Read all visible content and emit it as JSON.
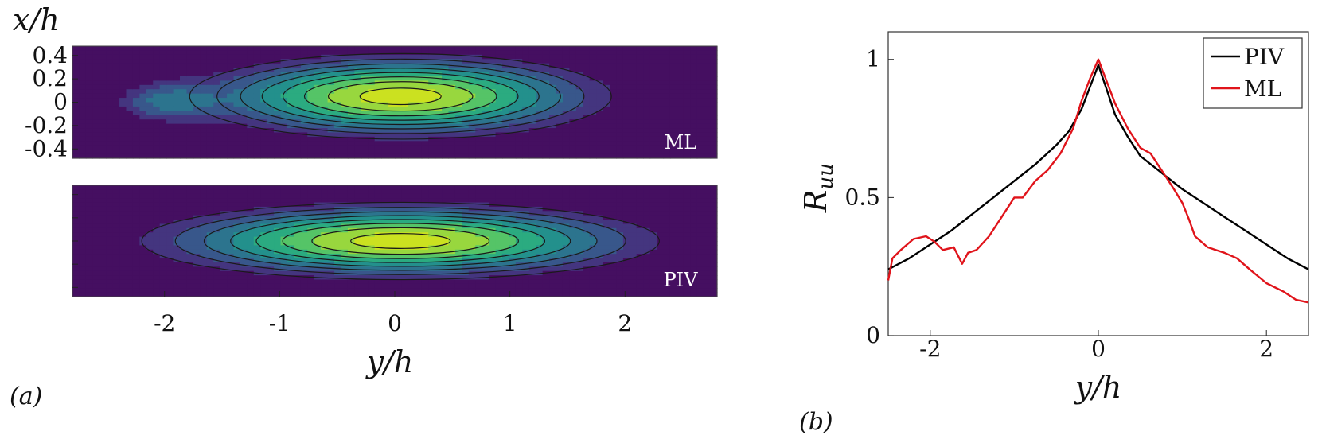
{
  "panel_a_label": "(a)",
  "panel_b_label": "(b)",
  "colors": {
    "piv": "#000000",
    "ml": "#e0141b",
    "contour_line": "#1a1a1a",
    "viridis_low": "#440154",
    "viridis_high": "#d8e219"
  },
  "chart_data": [
    {
      "type": "heatmap",
      "name": "ML contour map",
      "panel": "a",
      "inset_label": "ML",
      "ylabel": "x/h",
      "xlabel": "",
      "xlim": [
        -2.8,
        2.8
      ],
      "ylim": [
        -0.48,
        0.48
      ],
      "yticks": [
        0.4,
        0.2,
        0,
        -0.2,
        -0.4
      ],
      "ytick_labels": [
        "0.4",
        "0.2",
        "0",
        "-0.2",
        "-0.4"
      ],
      "field": {
        "peak": {
          "y": 0.05,
          "x": 0.05,
          "value": 1.0
        },
        "secondary": [
          {
            "y": -2.0,
            "x": 0.0,
            "value": 0.35
          }
        ],
        "sigma_y": 1.1,
        "sigma_x": 0.22,
        "levels": [
          0.25,
          0.35,
          0.45,
          0.55,
          0.65,
          0.75,
          0.85,
          0.95
        ]
      }
    },
    {
      "type": "heatmap",
      "name": "PIV contour map",
      "panel": "a",
      "inset_label": "PIV",
      "xlabel": "y/h",
      "xlim": [
        -2.8,
        2.8
      ],
      "xticks": [
        -2,
        -1,
        0,
        1,
        2
      ],
      "xtick_labels": [
        "-2",
        "-1",
        "0",
        "1",
        "2"
      ],
      "ylim": [
        -0.48,
        0.48
      ],
      "field": {
        "peak": {
          "y": 0.05,
          "x": 0.0,
          "value": 1.0
        },
        "sigma_y": 1.35,
        "sigma_x": 0.2,
        "levels": [
          0.25,
          0.35,
          0.45,
          0.55,
          0.65,
          0.75,
          0.85,
          0.95
        ]
      }
    },
    {
      "type": "line",
      "name": "R_uu profile",
      "panel": "b",
      "xlabel": "y/h",
      "ylabel": "R_uu",
      "xlim": [
        -2.5,
        2.5
      ],
      "ylim": [
        0,
        1.1
      ],
      "xticks": [
        -2,
        0,
        2
      ],
      "xtick_labels": [
        "-2",
        "0",
        "2"
      ],
      "yticks": [
        0,
        0.5,
        1
      ],
      "ytick_labels": [
        "0",
        "0.5",
        "1"
      ],
      "legend_position": "top-right",
      "series": [
        {
          "name": "PIV",
          "x": [
            -2.5,
            -2.25,
            -2.0,
            -1.75,
            -1.5,
            -1.25,
            -1.0,
            -0.75,
            -0.5,
            -0.35,
            -0.2,
            -0.1,
            0,
            0.1,
            0.2,
            0.35,
            0.5,
            0.75,
            1.0,
            1.25,
            1.5,
            1.75,
            2.0,
            2.25,
            2.5
          ],
          "y": [
            0.24,
            0.28,
            0.33,
            0.38,
            0.44,
            0.5,
            0.56,
            0.62,
            0.69,
            0.74,
            0.82,
            0.9,
            0.98,
            0.89,
            0.8,
            0.72,
            0.65,
            0.59,
            0.53,
            0.48,
            0.43,
            0.38,
            0.33,
            0.28,
            0.24
          ]
        },
        {
          "name": "ML",
          "x": [
            -2.5,
            -2.45,
            -2.35,
            -2.2,
            -2.05,
            -1.95,
            -1.85,
            -1.72,
            -1.62,
            -1.55,
            -1.45,
            -1.3,
            -1.15,
            -1.0,
            -0.9,
            -0.75,
            -0.6,
            -0.45,
            -0.3,
            -0.2,
            -0.1,
            0,
            0.1,
            0.2,
            0.35,
            0.5,
            0.62,
            0.75,
            0.9,
            1.0,
            1.08,
            1.15,
            1.3,
            1.5,
            1.65,
            1.8,
            2.0,
            2.2,
            2.35,
            2.5
          ],
          "y": [
            0.2,
            0.28,
            0.31,
            0.35,
            0.36,
            0.34,
            0.31,
            0.32,
            0.26,
            0.3,
            0.31,
            0.36,
            0.43,
            0.5,
            0.5,
            0.56,
            0.6,
            0.66,
            0.75,
            0.85,
            0.93,
            1.0,
            0.92,
            0.84,
            0.75,
            0.68,
            0.66,
            0.6,
            0.53,
            0.48,
            0.42,
            0.36,
            0.32,
            0.3,
            0.28,
            0.24,
            0.19,
            0.16,
            0.13,
            0.12
          ]
        }
      ]
    }
  ]
}
